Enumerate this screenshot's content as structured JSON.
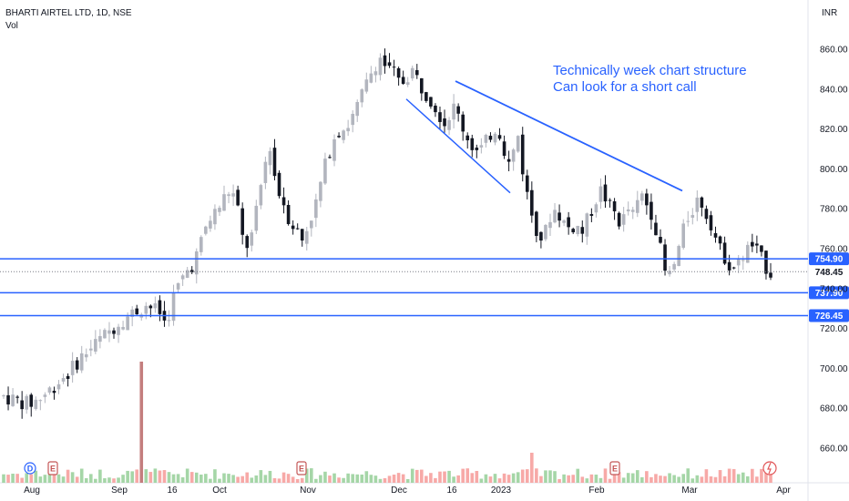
{
  "header": {
    "symbol_line": "BHARTI AIRTEL LTD, 1D, NSE",
    "volume_label": "Vol"
  },
  "chart_data": {
    "type": "candlestick",
    "currency": "INR",
    "y_ticks": [
      "660.00",
      "680.00",
      "700.00",
      "720.00",
      "740.00",
      "760.00",
      "780.00",
      "800.00",
      "820.00",
      "840.00",
      "860.00"
    ],
    "ylim": [
      653,
      869
    ],
    "x_labels": [
      "Aug",
      "Sep",
      "16",
      "Oct",
      "Nov",
      "Dec",
      "16",
      "2023",
      "Feb",
      "Mar",
      "Apr"
    ],
    "bars_count": 168,
    "series_close_path": [
      [
        0,
        686
      ],
      [
        4,
        684
      ],
      [
        8,
        682
      ],
      [
        12,
        686
      ],
      [
        16,
        692
      ],
      [
        20,
        698
      ],
      [
        24,
        706
      ],
      [
        28,
        712
      ],
      [
        32,
        718
      ],
      [
        36,
        724
      ],
      [
        40,
        728
      ],
      [
        44,
        732
      ],
      [
        48,
        728
      ],
      [
        50,
        722
      ],
      [
        52,
        735
      ],
      [
        54,
        742
      ],
      [
        56,
        748
      ],
      [
        58,
        752
      ],
      [
        60,
        759
      ],
      [
        62,
        770
      ],
      [
        64,
        776
      ],
      [
        66,
        780
      ],
      [
        68,
        786
      ],
      [
        70,
        790
      ],
      [
        72,
        780
      ],
      [
        74,
        760
      ],
      [
        76,
        764
      ],
      [
        78,
        780
      ],
      [
        80,
        800
      ],
      [
        82,
        812
      ],
      [
        84,
        790
      ],
      [
        86,
        784
      ],
      [
        88,
        774
      ],
      [
        90,
        770
      ],
      [
        92,
        764
      ],
      [
        94,
        774
      ],
      [
        96,
        782
      ],
      [
        98,
        796
      ],
      [
        100,
        808
      ],
      [
        102,
        818
      ],
      [
        104,
        820
      ],
      [
        106,
        822
      ],
      [
        108,
        828
      ],
      [
        110,
        836
      ],
      [
        112,
        844
      ],
      [
        114,
        852
      ],
      [
        116,
        856
      ],
      [
        118,
        850
      ],
      [
        120,
        848
      ],
      [
        122,
        842
      ],
      [
        124,
        846
      ],
      [
        126,
        850
      ],
      [
        128,
        842
      ],
      [
        130,
        838
      ],
      [
        132,
        834
      ],
      [
        134,
        828
      ],
      [
        136,
        822
      ],
      [
        138,
        832
      ],
      [
        140,
        826
      ],
      [
        142,
        818
      ],
      [
        144,
        812
      ],
      [
        146,
        808
      ],
      [
        148,
        812
      ],
      [
        150,
        818
      ],
      [
        152,
        822
      ],
      [
        154,
        810
      ],
      [
        156,
        800
      ],
      [
        158,
        820
      ],
      [
        160,
        796
      ],
      [
        162,
        780
      ],
      [
        164,
        770
      ],
      [
        166,
        764
      ],
      [
        168,
        776
      ],
      [
        170,
        780
      ],
      [
        172,
        774
      ],
      [
        174,
        770
      ],
      [
        176,
        772
      ],
      [
        178,
        768
      ],
      [
        180,
        776
      ],
      [
        182,
        784
      ],
      [
        184,
        790
      ],
      [
        186,
        782
      ],
      [
        188,
        778
      ],
      [
        190,
        772
      ],
      [
        192,
        780
      ],
      [
        194,
        776
      ],
      [
        196,
        788
      ],
      [
        198,
        782
      ],
      [
        200,
        776
      ],
      [
        202,
        760
      ],
      [
        204,
        744
      ],
      [
        206,
        750
      ],
      [
        208,
        762
      ],
      [
        210,
        774
      ],
      [
        212,
        780
      ],
      [
        214,
        786
      ],
      [
        216,
        778
      ],
      [
        218,
        772
      ],
      [
        220,
        760
      ],
      [
        222,
        756
      ],
      [
        224,
        750
      ],
      [
        226,
        752
      ],
      [
        228,
        758
      ],
      [
        230,
        762
      ],
      [
        232,
        758
      ],
      [
        234,
        752
      ],
      [
        236,
        748
      ]
    ],
    "volume_spike": {
      "date_approx": "Sep",
      "relative": 1.0
    },
    "price_levels": [
      {
        "label": "754.90",
        "value": 754.9,
        "color": "#2962ff"
      },
      {
        "label": "748.45",
        "value": 748.45,
        "color": "#131722",
        "kind": "last-price"
      },
      {
        "label": "737.90",
        "value": 737.9,
        "color": "#2962ff"
      },
      {
        "label": "726.45",
        "value": 726.45,
        "color": "#2962ff"
      }
    ],
    "trendlines": [
      {
        "name": "upper",
        "from": [
          "Dec 16",
          844
        ],
        "to": [
          "Feb end",
          789
        ]
      },
      {
        "name": "lower",
        "from": [
          "Dec",
          835
        ],
        "to": [
          "Jan",
          788
        ]
      }
    ],
    "annotation": [
      "Technically week chart structure",
      "Can look for a short call"
    ],
    "event_markers": [
      "D",
      "E",
      "E",
      "E",
      "lightning"
    ]
  },
  "colors": {
    "up": "#b2b5be",
    "down": "#131722",
    "line": "#2962ff",
    "vol_up": "#a5d6a7",
    "vol_down": "#f7a9a7",
    "spike": "#c47e7e"
  }
}
